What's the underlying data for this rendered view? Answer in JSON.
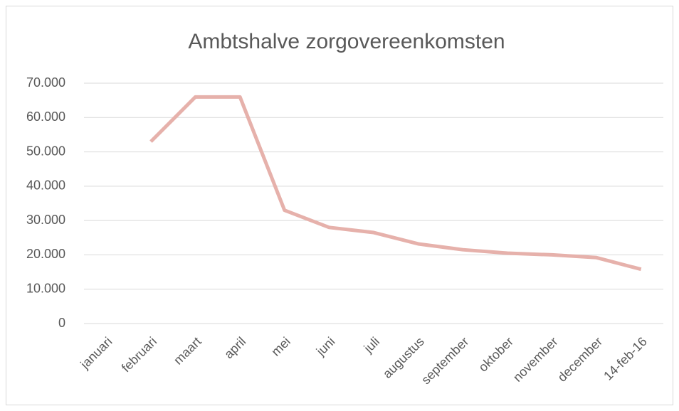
{
  "chart_data": {
    "type": "line",
    "title": "Ambtshalve zorgovereenkomsten",
    "categories": [
      "januari",
      "februari",
      "maart",
      "april",
      "mei",
      "juni",
      "juli",
      "augustus",
      "september",
      "oktober",
      "november",
      "december",
      "14-feb-16"
    ],
    "series": [
      {
        "name": null,
        "color": "#e6b1ab",
        "values": [
          null,
          53000,
          66000,
          66000,
          33000,
          28000,
          26500,
          23200,
          21500,
          20500,
          20000,
          19200,
          15800
        ]
      }
    ],
    "ylim": [
      0,
      70000
    ],
    "yticks": [
      0,
      {
        "value": 10000,
        "label": "10.000"
      },
      {
        "value": 20000,
        "label": "20.000"
      },
      {
        "value": 30000,
        "label": "30.000"
      },
      {
        "value": 40000,
        "label": "40.000"
      },
      {
        "value": 50000,
        "label": "50.000"
      },
      {
        "value": 60000,
        "label": "60.000"
      },
      {
        "value": 70000,
        "label": "70.000"
      }
    ],
    "grid": true
  }
}
